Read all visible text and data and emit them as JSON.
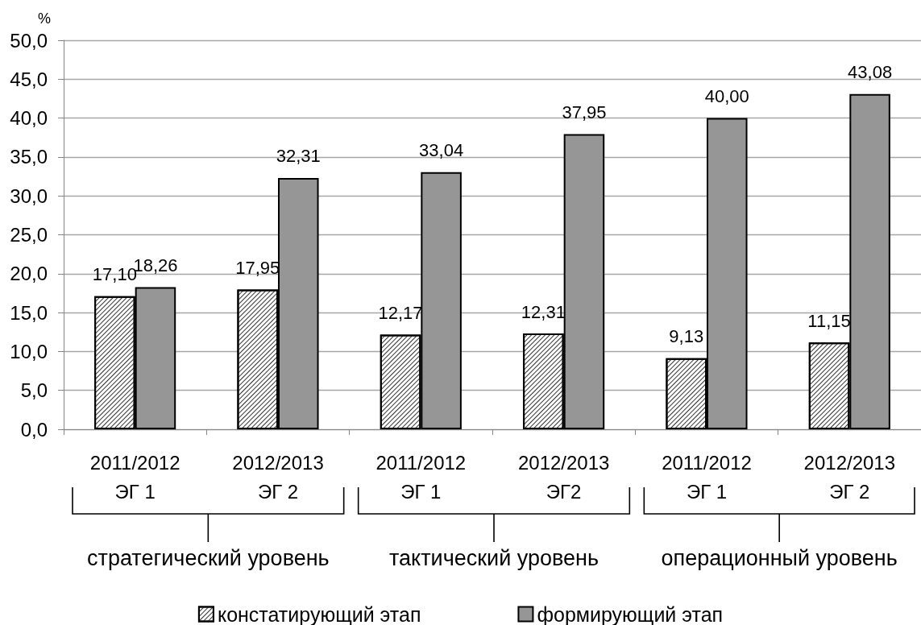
{
  "chart_data": {
    "type": "bar",
    "ylabel": "%",
    "categories": [
      "2011/2012\nЭГ 1",
      "2012/2013\nЭГ 2",
      "2011/2012\nЭГ 1",
      "2012/2013\nЭГ2",
      "2011/2012\nЭГ 1",
      "2012/2013\nЭГ 2"
    ],
    "series": [
      {
        "name": "констатирующий этап",
        "color": "#ffffff",
        "values": [
          17.1,
          17.95,
          12.17,
          12.31,
          9.13,
          11.15
        ],
        "value_labels": [
          "17,10",
          "17,95",
          "12,17",
          "12,31",
          "9,13",
          "11,15"
        ]
      },
      {
        "name": "формирующий этап",
        "color": "#969696",
        "values": [
          18.26,
          32.31,
          33.04,
          37.95,
          40.0,
          43.08
        ],
        "value_labels": [
          "18,26",
          "32,31",
          "33,04",
          "37,95",
          "40,00",
          "43,08"
        ]
      }
    ],
    "ylim": [
      0,
      50
    ],
    "yticks": [
      {
        "value": 0,
        "label": "0,0"
      },
      {
        "value": 5,
        "label": "5,0"
      },
      {
        "value": 10,
        "label": "10,0"
      },
      {
        "value": 15,
        "label": "15,0"
      },
      {
        "value": 20,
        "label": "20,0"
      },
      {
        "value": 25,
        "label": "25,0"
      },
      {
        "value": 30,
        "label": "30,0"
      },
      {
        "value": 35,
        "label": "35,0"
      },
      {
        "value": 40,
        "label": "40,0"
      },
      {
        "value": 45,
        "label": "45,0"
      },
      {
        "value": 50,
        "label": "50,0"
      }
    ],
    "grid": "y",
    "legend": "bottom",
    "annotations": [
      "стратегический уровень",
      "тактический уровень",
      "операционный уровень"
    ]
  }
}
